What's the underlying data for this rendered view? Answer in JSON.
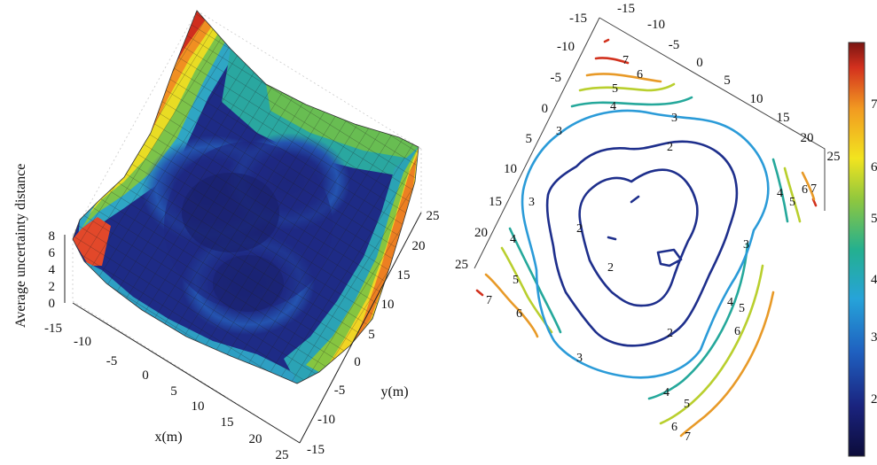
{
  "chart_data": [
    {
      "type": "surface",
      "zlabel": "Average uncertainty distance",
      "xlabel": "x(m)",
      "ylabel": "y(m)",
      "xlim": [
        -15,
        25
      ],
      "ylim": [
        -15,
        25
      ],
      "zlim": [
        0,
        8
      ],
      "x_ticks": [
        "-15",
        "-10",
        "-5",
        "0",
        "5",
        "10",
        "15",
        "20",
        "25"
      ],
      "y_ticks": [
        "-15",
        "-10",
        "-5",
        "0",
        "5",
        "10",
        "15",
        "20",
        "25"
      ],
      "z_ticks": [
        "0",
        "2",
        "4",
        "6",
        "8"
      ],
      "colormap": "jet",
      "description_values": {
        "min_region_value": 1.5,
        "corner_max_value": 7.8,
        "low_centers_xy": [
          [
            -2,
            2
          ],
          [
            8,
            12
          ],
          [
            2,
            14
          ]
        ]
      }
    },
    {
      "type": "contour",
      "x_ticks": [
        "-15",
        "-10",
        "-5",
        "0",
        "5",
        "10",
        "15",
        "20",
        "25"
      ],
      "y_ticks": [
        "-15",
        "-10",
        "-5",
        "0",
        "5",
        "10",
        "15",
        "20",
        "25"
      ],
      "levels": [
        2,
        3,
        4,
        5,
        6,
        7
      ],
      "level_colors": {
        "2": "#1e2f8c",
        "3": "#2b9bd8",
        "4": "#25a89b",
        "5": "#b9cf2e",
        "6": "#e89a28",
        "7": "#d2321e"
      },
      "labels": [
        {
          "text": "7",
          "level": 7
        },
        {
          "text": "6",
          "level": 6
        },
        {
          "text": "5",
          "level": 5
        },
        {
          "text": "4",
          "level": 4
        },
        {
          "text": "3",
          "level": 3
        },
        {
          "text": "3",
          "level": 3
        },
        {
          "text": "3",
          "level": 3
        },
        {
          "text": "3",
          "level": 3
        },
        {
          "text": "3",
          "level": 3
        },
        {
          "text": "2",
          "level": 2
        },
        {
          "text": "2",
          "level": 2
        },
        {
          "text": "2",
          "level": 2
        },
        {
          "text": "2",
          "level": 2
        },
        {
          "text": "4",
          "level": 4
        },
        {
          "text": "5",
          "level": 5
        },
        {
          "text": "6",
          "level": 6
        },
        {
          "text": "4",
          "level": 4
        },
        {
          "text": "5",
          "level": 5
        },
        {
          "text": "6",
          "level": 6
        },
        {
          "text": "4",
          "level": 4
        },
        {
          "text": "5",
          "level": 5
        },
        {
          "text": "6",
          "level": 6
        },
        {
          "text": "4",
          "level": 4
        },
        {
          "text": "5",
          "level": 5
        },
        {
          "text": "6",
          "level": 6
        },
        {
          "text": "7",
          "level": 7
        },
        {
          "text": "7",
          "level": 7
        },
        {
          "text": "7",
          "level": 7
        }
      ]
    },
    {
      "type": "colorbar",
      "ticks": [
        "2",
        "3",
        "4",
        "5",
        "6",
        "7"
      ],
      "range": [
        1.5,
        7.8
      ],
      "colormap": "jet"
    }
  ]
}
